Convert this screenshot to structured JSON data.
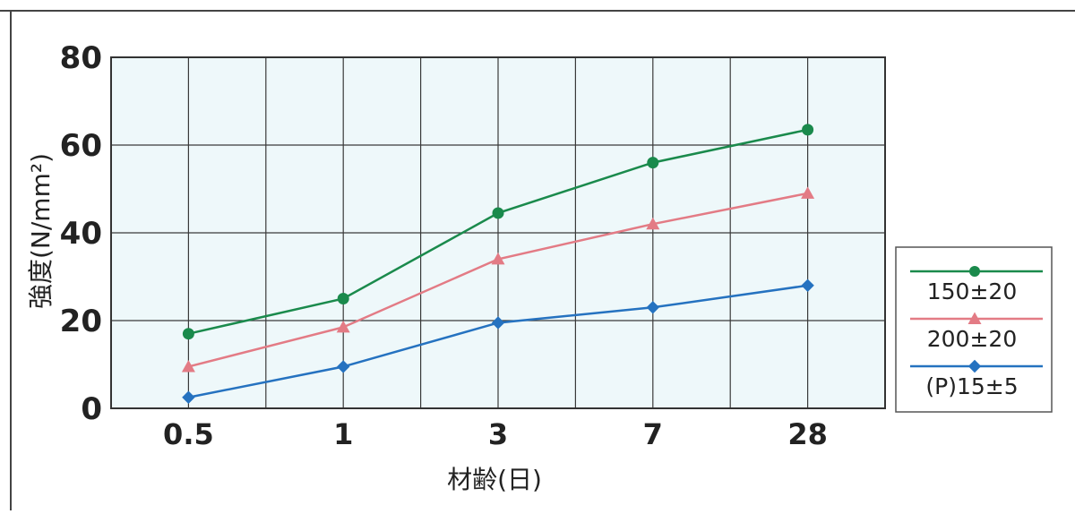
{
  "colors": {
    "plot_background": "#eef8fa",
    "grid": "#3a3a3a",
    "frame": "#333333",
    "series_1": "#1a8a4c",
    "series_2": "#e37b85",
    "series_3": "#2572c0"
  },
  "chart_data": {
    "type": "line",
    "title": "",
    "xlabel": "材齢(日)",
    "ylabel": "強度(N/mm²)",
    "categories": [
      "0.5",
      "1",
      "3",
      "7",
      "28"
    ],
    "ylim": [
      0,
      80
    ],
    "yticks": [
      "0",
      "20",
      "40",
      "60",
      "80"
    ],
    "grid": true,
    "legend_position": "right",
    "series": [
      {
        "name": "150±20",
        "marker": "circle",
        "color_key": "series_1",
        "values": [
          17,
          25,
          44.5,
          56,
          63.5
        ]
      },
      {
        "name": "200±20",
        "marker": "triangle",
        "color_key": "series_2",
        "values": [
          9.5,
          18.5,
          34,
          42,
          49
        ]
      },
      {
        "name": "(P)15±5",
        "marker": "diamond",
        "color_key": "series_3",
        "values": [
          2.5,
          9.5,
          19.5,
          23,
          28
        ]
      }
    ]
  }
}
